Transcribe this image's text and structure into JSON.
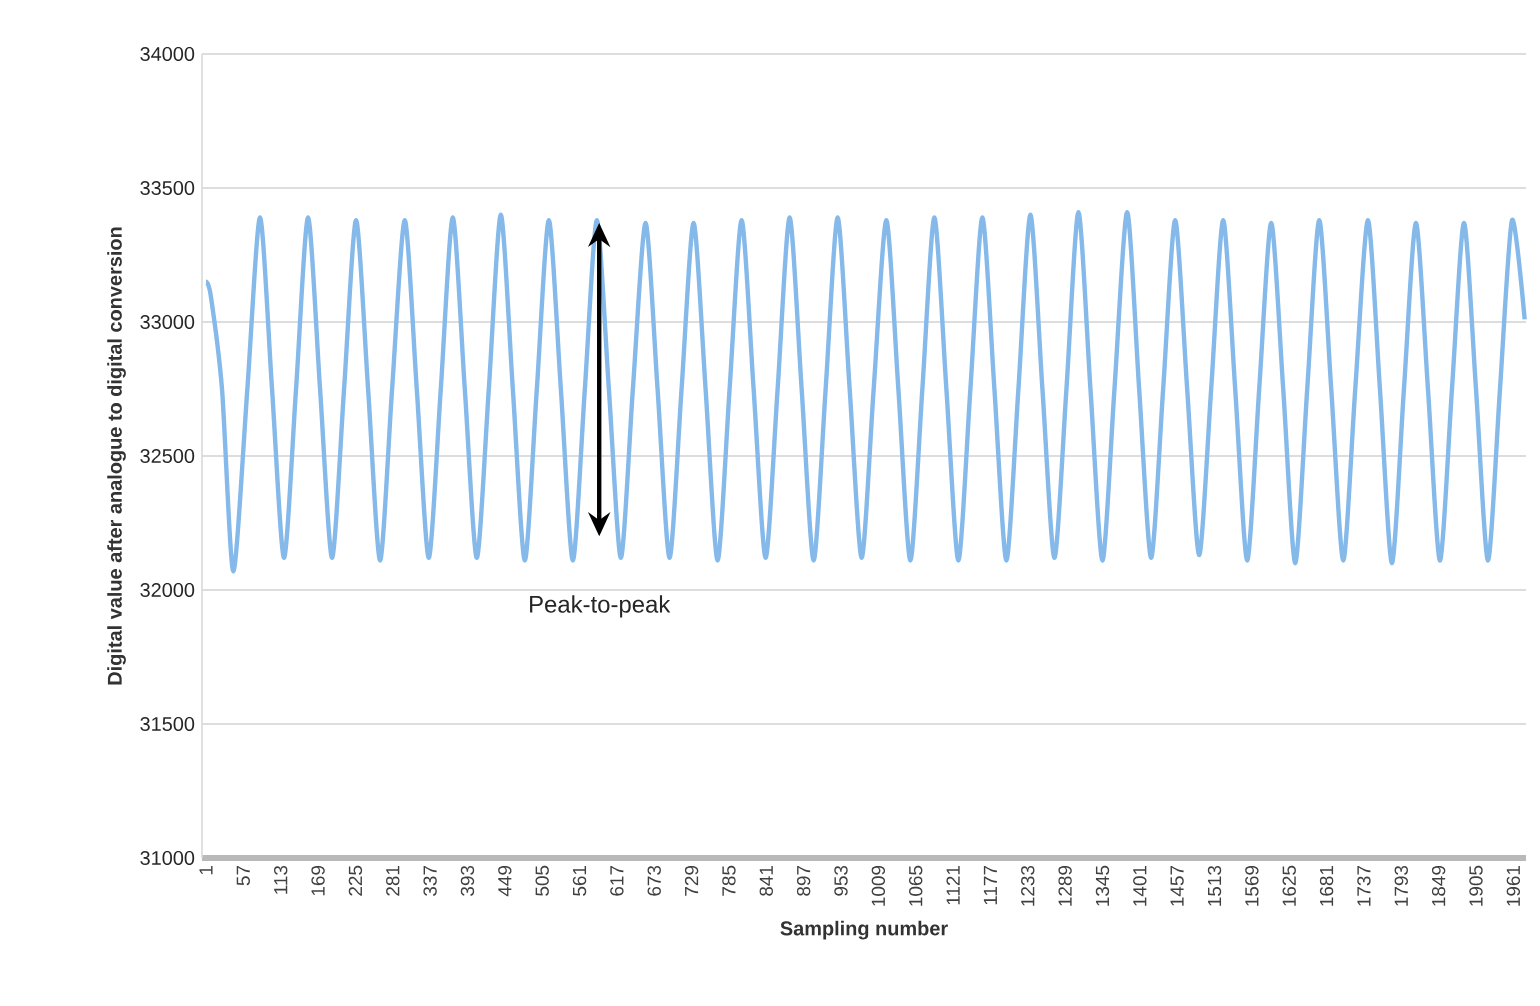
{
  "chart_data": {
    "type": "line",
    "xlabel": "Sampling number",
    "ylabel": "Digital value after analogue to digital conversion",
    "xlim": [
      -5,
      1980
    ],
    "ylim": [
      31000,
      34000
    ],
    "xticks": [
      1,
      57,
      113,
      169,
      225,
      281,
      337,
      393,
      449,
      505,
      561,
      617,
      673,
      729,
      785,
      841,
      897,
      953,
      1009,
      1065,
      1121,
      1177,
      1233,
      1289,
      1345,
      1401,
      1457,
      1513,
      1569,
      1625,
      1681,
      1737,
      1793,
      1849,
      1905,
      1961
    ],
    "yticks": [
      31000,
      31500,
      32000,
      32500,
      33000,
      33500,
      34000
    ],
    "grid": "y",
    "marker": "none",
    "line_style": "solid",
    "annotations": [
      "Peak-to-peak"
    ],
    "series": [
      {
        "color": "#85b9ea",
        "x": [
          1,
          8,
          25,
          42,
          63,
          82,
          100,
          118,
          136,
          154,
          172,
          190,
          208,
          226,
          244,
          262,
          280,
          299,
          317,
          335,
          353,
          371,
          389,
          407,
          425,
          443,
          461,
          479,
          497,
          515,
          533,
          551,
          569,
          587,
          605,
          623,
          641,
          660,
          678,
          696,
          714,
          732,
          750,
          768,
          786,
          804,
          822,
          840,
          858,
          876,
          894,
          912,
          930,
          948,
          966,
          984,
          1002,
          1021,
          1039,
          1057,
          1075,
          1093,
          1111,
          1129,
          1147,
          1165,
          1183,
          1201,
          1219,
          1237,
          1255,
          1273,
          1291,
          1309,
          1327,
          1345,
          1363,
          1382,
          1400,
          1418,
          1436,
          1454,
          1472,
          1490,
          1508,
          1526,
          1544,
          1562,
          1580,
          1598,
          1616,
          1634,
          1652,
          1670,
          1688,
          1706,
          1724,
          1743,
          1761,
          1779,
          1797,
          1815,
          1833,
          1851,
          1869,
          1887,
          1905,
          1923,
          1941,
          1959,
          1978
        ],
        "values": [
          33150,
          33100,
          32750,
          32070,
          32750,
          33390,
          32750,
          32120,
          32750,
          33390,
          32750,
          32120,
          32750,
          33380,
          32750,
          32110,
          32750,
          33380,
          32750,
          32120,
          32750,
          33390,
          32750,
          32120,
          32750,
          33400,
          32750,
          32110,
          32750,
          33380,
          32750,
          32110,
          32750,
          33380,
          32750,
          32120,
          32750,
          33370,
          32750,
          32120,
          32750,
          33370,
          32750,
          32110,
          32750,
          33380,
          32750,
          32120,
          32750,
          33390,
          32750,
          32110,
          32750,
          33390,
          32750,
          32120,
          32750,
          33380,
          32750,
          32110,
          32750,
          33390,
          32750,
          32110,
          32750,
          33390,
          32750,
          32110,
          32750,
          33400,
          32750,
          32120,
          32750,
          33410,
          32750,
          32110,
          32750,
          33410,
          32750,
          32120,
          32750,
          33380,
          32750,
          32130,
          32750,
          33380,
          32750,
          32110,
          32750,
          33370,
          32750,
          32100,
          32750,
          33380,
          32750,
          32110,
          32750,
          33380,
          32750,
          32100,
          32750,
          33370,
          32750,
          32110,
          32750,
          33370,
          32750,
          32110,
          32750,
          33380,
          33010
        ]
      }
    ]
  }
}
